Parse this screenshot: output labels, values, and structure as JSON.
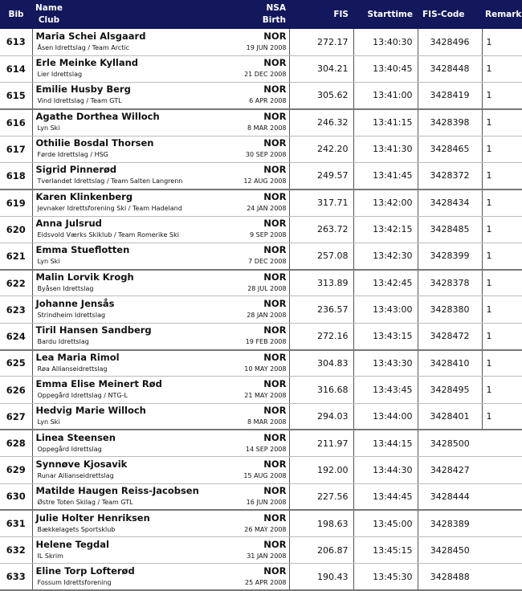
{
  "header": {
    "bib": "Bib",
    "name": "Name",
    "club": "Club",
    "nsa": "NSA",
    "birth": "Birth",
    "fis": "FIS",
    "starttime": "Starttime",
    "fis_code": "FIS-Code",
    "remarks": "Remarks"
  },
  "colors": {
    "header_bg": "#13175c"
  },
  "rows": [
    {
      "bib": "613",
      "name": "Maria Schei Alsgaard",
      "club": "Åsen Idrettslag  / Team Arctic",
      "nsa": "NOR",
      "birth": "19 JUN 2008",
      "fis": "272.17",
      "start": "13:40:30",
      "code": "3428496",
      "rem": "1"
    },
    {
      "bib": "614",
      "name": "Erle Meinke Kylland",
      "club": "Lier Idrettslag",
      "nsa": "NOR",
      "birth": "21 DEC 2008",
      "fis": "304.21",
      "start": "13:40:45",
      "code": "3428448",
      "rem": "1"
    },
    {
      "bib": "615",
      "name": "Emilie Husby Berg",
      "club": "Vind Idrettslag  / Team GTL",
      "nsa": "NOR",
      "birth": "6 APR 2008",
      "fis": "305.62",
      "start": "13:41:00",
      "code": "3428419",
      "rem": "1"
    },
    {
      "bib": "616",
      "name": "Agathe Dorthea Willoch",
      "club": "Lyn Ski",
      "nsa": "NOR",
      "birth": "8 MAR 2008",
      "fis": "246.32",
      "start": "13:41:15",
      "code": "3428398",
      "rem": "1"
    },
    {
      "bib": "617",
      "name": "Othilie Bosdal Thorsen",
      "club": "Førde Idrettslag  / HSG",
      "nsa": "NOR",
      "birth": "30 SEP 2008",
      "fis": "242.20",
      "start": "13:41:30",
      "code": "3428465",
      "rem": "1"
    },
    {
      "bib": "618",
      "name": "Sigrid Pinnerød",
      "club": "Tverlandet Idrettslag  / Team Salten Langrenn",
      "nsa": "NOR",
      "birth": "12 AUG 2008",
      "fis": "249.57",
      "start": "13:41:45",
      "code": "3428372",
      "rem": "1"
    },
    {
      "bib": "619",
      "name": "Karen Klinkenberg",
      "club": "Jevnaker Idrettsforening Ski  / Team Hadeland",
      "nsa": "NOR",
      "birth": "24 JAN 2008",
      "fis": "317.71",
      "start": "13:42:00",
      "code": "3428434",
      "rem": "1"
    },
    {
      "bib": "620",
      "name": "Anna Julsrud",
      "club": "Eidsvold Værks Skiklub  / Team Romerike Ski",
      "nsa": "NOR",
      "birth": "9 SEP 2008",
      "fis": "263.72",
      "start": "13:42:15",
      "code": "3428485",
      "rem": "1"
    },
    {
      "bib": "621",
      "name": "Emma Stueflotten",
      "club": "Lyn Ski",
      "nsa": "NOR",
      "birth": "7 DEC 2008",
      "fis": "257.08",
      "start": "13:42:30",
      "code": "3428399",
      "rem": "1"
    },
    {
      "bib": "622",
      "name": "Malin Lorvik Krogh",
      "club": "Byåsen Idrettslag",
      "nsa": "NOR",
      "birth": "28 JUL 2008",
      "fis": "313.89",
      "start": "13:42:45",
      "code": "3428378",
      "rem": "1"
    },
    {
      "bib": "623",
      "name": "Johanne Jensås",
      "club": "Strindheim Idrettslag",
      "nsa": "NOR",
      "birth": "28 JAN 2008",
      "fis": "236.57",
      "start": "13:43:00",
      "code": "3428380",
      "rem": "1"
    },
    {
      "bib": "624",
      "name": "Tiril Hansen Sandberg",
      "club": "Bardu Idrettslag",
      "nsa": "NOR",
      "birth": "19 FEB 2008",
      "fis": "272.16",
      "start": "13:43:15",
      "code": "3428472",
      "rem": "1"
    },
    {
      "bib": "625",
      "name": "Lea Maria Rimol",
      "club": "Røa Allianseidrettslag",
      "nsa": "NOR",
      "birth": "10 MAY 2008",
      "fis": "304.83",
      "start": "13:43:30",
      "code": "3428410",
      "rem": "1"
    },
    {
      "bib": "626",
      "name": "Emma Elise Meinert Rød",
      "club": "Oppegård Idrettslag  / NTG-L",
      "nsa": "NOR",
      "birth": "21 MAY 2008",
      "fis": "316.68",
      "start": "13:43:45",
      "code": "3428495",
      "rem": "1"
    },
    {
      "bib": "627",
      "name": "Hedvig Marie Willoch",
      "club": "Lyn Ski",
      "nsa": "NOR",
      "birth": "8 MAR 2008",
      "fis": "294.03",
      "start": "13:44:00",
      "code": "3428401",
      "rem": "1"
    },
    {
      "bib": "628",
      "name": "Linea Steensen",
      "club": "Oppegård Idrettslag",
      "nsa": "NOR",
      "birth": "14 SEP 2008",
      "fis": "211.97",
      "start": "13:44:15",
      "code": "3428500",
      "rem": ""
    },
    {
      "bib": "629",
      "name": "Synnøve Kjosavik",
      "club": "Runar Allianseidrettslag",
      "nsa": "NOR",
      "birth": "15 AUG 2008",
      "fis": "192.00",
      "start": "13:44:30",
      "code": "3428427",
      "rem": ""
    },
    {
      "bib": "630",
      "name": "Matilde Haugen Reiss-Jacobsen",
      "club": "Østre Toten Skilag  / Team GTL",
      "nsa": "NOR",
      "birth": "16 JUN 2008",
      "fis": "227.56",
      "start": "13:44:45",
      "code": "3428444",
      "rem": ""
    },
    {
      "bib": "631",
      "name": "Julie Holter Henriksen",
      "club": "Bækkelagets Sportsklub",
      "nsa": "NOR",
      "birth": "26 MAY 2008",
      "fis": "198.63",
      "start": "13:45:00",
      "code": "3428389",
      "rem": ""
    },
    {
      "bib": "632",
      "name": "Helene Tegdal",
      "club": "IL Skrim",
      "nsa": "NOR",
      "birth": "31 JAN 2008",
      "fis": "206.87",
      "start": "13:45:15",
      "code": "3428450",
      "rem": ""
    },
    {
      "bib": "633",
      "name": "Eline Torp Lofterød",
      "club": "Fossum Idrettsforening",
      "nsa": "NOR",
      "birth": "25 APR 2008",
      "fis": "190.43",
      "start": "13:45:30",
      "code": "3428488",
      "rem": ""
    }
  ]
}
